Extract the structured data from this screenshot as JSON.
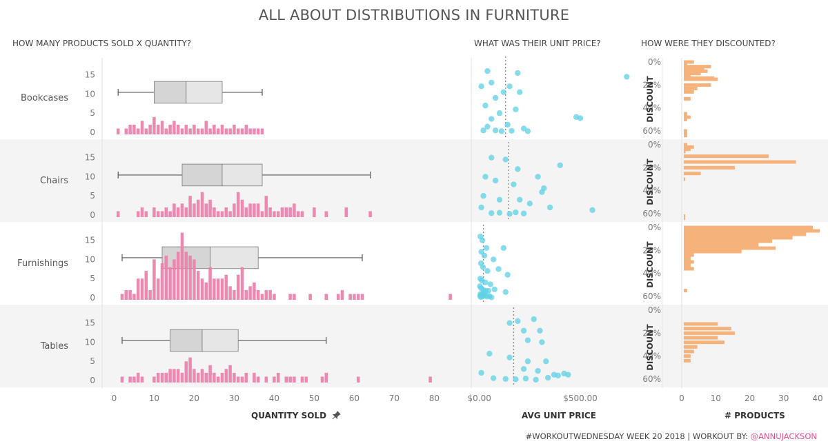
{
  "title": "ALL ABOUT DISTRIBUTIONS IN FURNITURE",
  "sections": {
    "quantity": "HOW MANY PRODUCTS SOLD X QUANTITY?",
    "price": "WHAT WAS THEIR UNIT PRICE?",
    "discount": "HOW WERE THEY DISCOUNTED?"
  },
  "axis_titles": {
    "quantity": "QUANTITY SOLD",
    "quantity_pin_icon": "pin-icon",
    "price": "AVG UNIT PRICE",
    "discount_x": "# PRODUCTS",
    "discount_y": "DISCOUNT"
  },
  "footer": {
    "text": "#WORKOUTWEDNESDAY WEEK 20 2018 | WORKOUT BY: ",
    "handle": "@ANNUJACKSON"
  },
  "colors": {
    "hist": "#ec82ad",
    "scatter": "#5fd0e6",
    "discount": "#f5b27a",
    "box_dark": "#d5d5d5",
    "box_light": "#e6e6e6",
    "band": "#f4f4f4"
  },
  "chart_data": [
    {
      "type": "bar",
      "name": "quantity_histogram_with_boxplot",
      "xlabel": "QUANTITY SOLD",
      "x_ticks": [
        0,
        10,
        20,
        30,
        40,
        50,
        60,
        70,
        80
      ],
      "y_ticks": [
        0,
        5,
        10,
        15
      ],
      "xlim": [
        -3,
        87
      ],
      "ylim": [
        0,
        18
      ],
      "rows": [
        {
          "category": "Bookcases",
          "box": {
            "whisker_low": 1,
            "q1": 10,
            "median": 18,
            "q3": 27,
            "whisker_high": 37
          },
          "x": [
            1,
            3,
            4,
            5,
            6,
            7,
            8,
            9,
            10,
            11,
            12,
            13,
            14,
            15,
            16,
            17,
            18,
            19,
            20,
            21,
            22,
            23,
            24,
            25,
            26,
            27,
            28,
            29,
            30,
            31,
            32,
            33,
            34,
            35,
            36,
            37
          ],
          "values": [
            1,
            1,
            2,
            2,
            1,
            3,
            1,
            2,
            4,
            2,
            3,
            1,
            2,
            3,
            2,
            1,
            2,
            1,
            2,
            1,
            1,
            3,
            1,
            2,
            1,
            2,
            1,
            1,
            2,
            1,
            1,
            2,
            1,
            1,
            1,
            1
          ]
        },
        {
          "category": "Chairs",
          "box": {
            "whisker_low": 1,
            "q1": 17,
            "median": 27,
            "q3": 37,
            "whisker_high": 64
          },
          "x": [
            1,
            6,
            7,
            8,
            10,
            11,
            12,
            13,
            14,
            15,
            16,
            17,
            18,
            19,
            20,
            21,
            22,
            23,
            24,
            25,
            26,
            27,
            28,
            29,
            30,
            31,
            32,
            33,
            34,
            35,
            36,
            37,
            38,
            39,
            40,
            41,
            42,
            43,
            44,
            45,
            46,
            47,
            50,
            53,
            58,
            64
          ],
          "values": [
            1,
            1,
            2,
            1,
            2,
            1,
            1,
            2,
            1,
            3,
            2,
            3,
            2,
            5,
            3,
            4,
            6,
            3,
            4,
            2,
            1,
            1,
            2,
            1,
            3,
            6,
            4,
            2,
            3,
            3,
            3,
            1,
            5,
            2,
            1,
            1,
            2,
            2,
            2,
            3,
            1,
            1,
            2,
            1,
            2,
            1
          ]
        },
        {
          "category": "Furnishings",
          "box": {
            "whisker_low": 2,
            "q1": 12,
            "median": 24,
            "q3": 36,
            "whisker_high": 62
          },
          "x": [
            2,
            3,
            4,
            5,
            6,
            7,
            8,
            9,
            10,
            11,
            12,
            13,
            14,
            15,
            16,
            17,
            18,
            19,
            20,
            21,
            22,
            23,
            24,
            25,
            26,
            27,
            28,
            29,
            30,
            31,
            32,
            33,
            34,
            35,
            36,
            37,
            38,
            39,
            40,
            44,
            45,
            49,
            53,
            56,
            57,
            59,
            60,
            61,
            62,
            84
          ],
          "values": [
            1,
            2,
            2,
            1,
            5,
            5,
            7,
            2,
            10,
            5,
            9,
            11,
            8,
            10,
            12,
            17,
            12,
            11,
            10,
            7,
            5,
            4,
            8,
            5,
            5,
            5,
            6,
            3,
            2,
            6,
            8,
            2,
            3,
            4,
            2,
            1,
            2,
            2,
            1,
            1,
            1,
            1,
            1,
            1,
            2,
            1,
            1,
            1,
            1,
            1
          ]
        },
        {
          "category": "Tables",
          "box": {
            "whisker_low": 2,
            "q1": 14,
            "median": 22,
            "q3": 31,
            "whisker_high": 53
          },
          "x": [
            2,
            4,
            5,
            6,
            7,
            10,
            11,
            12,
            13,
            14,
            15,
            16,
            17,
            18,
            19,
            20,
            21,
            22,
            23,
            24,
            25,
            26,
            27,
            28,
            29,
            30,
            31,
            32,
            33,
            35,
            36,
            38,
            40,
            41,
            43,
            44,
            45,
            47,
            48,
            52,
            53,
            61,
            79
          ],
          "values": [
            1,
            1,
            1,
            2,
            1,
            1,
            2,
            2,
            2,
            3,
            3,
            3,
            2,
            5,
            6,
            3,
            2,
            3,
            2,
            4,
            2,
            1,
            2,
            3,
            4,
            2,
            1,
            1,
            2,
            2,
            1,
            1,
            1,
            2,
            1,
            1,
            1,
            1,
            1,
            1,
            2,
            1,
            1
          ]
        }
      ]
    },
    {
      "type": "scatter",
      "name": "unit_price_strip",
      "xlabel": "AVG UNIT PRICE",
      "x_ticks": [
        "$0.00",
        "$500.00"
      ],
      "x_tick_values": [
        0,
        500
      ],
      "xlim": [
        -40,
        770
      ],
      "ylim": [
        0,
        18
      ],
      "rows": [
        {
          "category": "Bookcases",
          "reference_line": 130,
          "points": [
            [
              40,
              16
            ],
            [
              190,
              15.5
            ],
            [
              10,
              12
            ],
            [
              60,
              13
            ],
            [
              120,
              10.5
            ],
            [
              150,
              12
            ],
            [
              200,
              10.5
            ],
            [
              80,
              9
            ],
            [
              30,
              7
            ],
            [
              100,
              5
            ],
            [
              180,
              6
            ],
            [
              60,
              3.5
            ],
            [
              140,
              2
            ],
            [
              40,
              1.5
            ],
            [
              220,
              1
            ],
            [
              20,
              0.5
            ],
            [
              80,
              0.5
            ],
            [
              110,
              0.3
            ],
            [
              160,
              0.4
            ],
            [
              240,
              0.3
            ],
            [
              480,
              4
            ],
            [
              500,
              3.7
            ],
            [
              730,
              14.5
            ]
          ]
        },
        {
          "category": "Chairs",
          "reference_line": 145,
          "points": [
            [
              60,
              15
            ],
            [
              130,
              14.5
            ],
            [
              190,
              12
            ],
            [
              400,
              13
            ],
            [
              30,
              10
            ],
            [
              80,
              9
            ],
            [
              170,
              8
            ],
            [
              290,
              10
            ],
            [
              320,
              7
            ],
            [
              20,
              5
            ],
            [
              100,
              4
            ],
            [
              200,
              4
            ],
            [
              250,
              3
            ],
            [
              310,
              6
            ],
            [
              350,
              2
            ],
            [
              10,
              2
            ],
            [
              60,
              0.5
            ],
            [
              100,
              0.6
            ],
            [
              150,
              0.3
            ],
            [
              180,
              0.7
            ],
            [
              220,
              0.4
            ],
            [
              560,
              1.3
            ]
          ]
        },
        {
          "category": "Furnishings",
          "reference_line": 20,
          "points": [
            [
              5,
              16
            ],
            [
              15,
              15
            ],
            [
              35,
              13
            ],
            [
              120,
              13
            ],
            [
              10,
              12
            ],
            [
              25,
              11
            ],
            [
              70,
              10
            ],
            [
              8,
              9
            ],
            [
              18,
              8
            ],
            [
              40,
              7
            ],
            [
              95,
              7.5
            ],
            [
              140,
              6
            ],
            [
              5,
              5
            ],
            [
              12,
              4.5
            ],
            [
              30,
              4
            ],
            [
              55,
              3.5
            ],
            [
              3,
              3
            ],
            [
              9,
              2.5
            ],
            [
              20,
              2
            ],
            [
              45,
              1.8
            ],
            [
              75,
              2.2
            ],
            [
              130,
              1.5
            ],
            [
              6,
              1
            ],
            [
              14,
              0.8
            ],
            [
              28,
              0.6
            ],
            [
              50,
              0.4
            ],
            [
              7,
              0.2
            ],
            [
              16,
              0.3
            ],
            [
              38,
              0.3
            ],
            [
              60,
              0.1
            ],
            [
              22,
              1.2
            ],
            [
              33,
              1.8
            ],
            [
              4,
              0.5
            ]
          ]
        },
        {
          "category": "Tables",
          "reference_line": 170,
          "points": [
            [
              150,
              15
            ],
            [
              190,
              15.5
            ],
            [
              270,
              16
            ],
            [
              220,
              13
            ],
            [
              300,
              13
            ],
            [
              240,
              10.5
            ],
            [
              310,
              10
            ],
            [
              50,
              7
            ],
            [
              150,
              6
            ],
            [
              240,
              5
            ],
            [
              330,
              5
            ],
            [
              220,
              3
            ],
            [
              290,
              2.5
            ],
            [
              10,
              2
            ],
            [
              370,
              1.5
            ],
            [
              390,
              1.3
            ],
            [
              420,
              1.8
            ],
            [
              440,
              1.5
            ],
            [
              70,
              0.6
            ],
            [
              130,
              0.4
            ],
            [
              180,
              0.3
            ],
            [
              230,
              0.5
            ],
            [
              280,
              0.2
            ],
            [
              340,
              0.7
            ]
          ]
        }
      ]
    },
    {
      "type": "bar",
      "name": "discount_histogram",
      "orientation": "horizontal",
      "xlabel": "# PRODUCTS",
      "ylabel": "DISCOUNT",
      "x_ticks": [
        0,
        10,
        20,
        30,
        40
      ],
      "y_ticks": [
        "0%",
        "20%",
        "40%",
        "60%"
      ],
      "xlim": [
        0,
        40
      ],
      "ylim": [
        0,
        60
      ],
      "rows": [
        {
          "category": "Bookcases",
          "discount_pct": [
            0,
            2,
            4,
            6,
            8,
            10,
            12,
            14,
            15,
            20,
            23,
            26,
            32,
            45,
            48,
            50,
            60,
            62,
            64
          ],
          "values": [
            3,
            1,
            8,
            6,
            7,
            5,
            2,
            9,
            10,
            8,
            4,
            3,
            2,
            1,
            2,
            1,
            1,
            1,
            1
          ]
        },
        {
          "category": "Chairs",
          "discount_pct": [
            0,
            2,
            4,
            6,
            10,
            15,
            20,
            25,
            30,
            62,
            64
          ],
          "values": [
            1,
            3,
            2,
            0.5,
            25,
            33,
            15,
            5,
            0.4,
            0.2,
            0.3
          ]
        },
        {
          "category": "Furnishings",
          "discount_pct": [
            0,
            3,
            6,
            9,
            12,
            15,
            18,
            21,
            24,
            27,
            30,
            33,
            36,
            55
          ],
          "values": [
            38,
            40,
            36,
            32,
            26,
            22,
            27,
            17,
            3,
            2,
            3,
            2,
            3,
            1
          ]
        },
        {
          "category": "Tables",
          "discount_pct": [
            12,
            16,
            20,
            24,
            28,
            32,
            36,
            40,
            44
          ],
          "values": [
            10,
            14,
            15,
            10,
            12,
            4,
            3,
            2,
            2
          ]
        }
      ]
    }
  ]
}
